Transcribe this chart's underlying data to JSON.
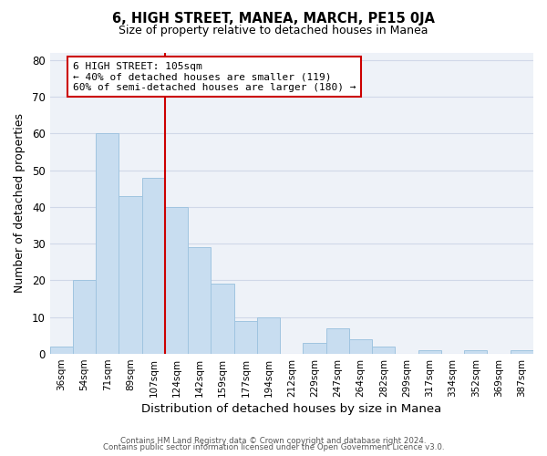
{
  "title": "6, HIGH STREET, MANEA, MARCH, PE15 0JA",
  "subtitle": "Size of property relative to detached houses in Manea",
  "xlabel": "Distribution of detached houses by size in Manea",
  "ylabel": "Number of detached properties",
  "bar_color": "#c8ddf0",
  "bar_edge_color": "#a0c4e0",
  "bins": [
    "36sqm",
    "54sqm",
    "71sqm",
    "89sqm",
    "107sqm",
    "124sqm",
    "142sqm",
    "159sqm",
    "177sqm",
    "194sqm",
    "212sqm",
    "229sqm",
    "247sqm",
    "264sqm",
    "282sqm",
    "299sqm",
    "317sqm",
    "334sqm",
    "352sqm",
    "369sqm",
    "387sqm"
  ],
  "values": [
    2,
    20,
    60,
    43,
    48,
    40,
    29,
    19,
    9,
    10,
    0,
    3,
    7,
    4,
    2,
    0,
    1,
    0,
    1,
    0,
    1
  ],
  "ylim": [
    0,
    82
  ],
  "yticks": [
    0,
    10,
    20,
    30,
    40,
    50,
    60,
    70,
    80
  ],
  "vline_index": 4,
  "vline_color": "#cc0000",
  "annotation_title": "6 HIGH STREET: 105sqm",
  "annotation_line1": "← 40% of detached houses are smaller (119)",
  "annotation_line2": "60% of semi-detached houses are larger (180) →",
  "footer1": "Contains HM Land Registry data © Crown copyright and database right 2024.",
  "footer2": "Contains public sector information licensed under the Open Government Licence v3.0.",
  "grid_color": "#d0d8e8",
  "background_color": "#eef2f8"
}
